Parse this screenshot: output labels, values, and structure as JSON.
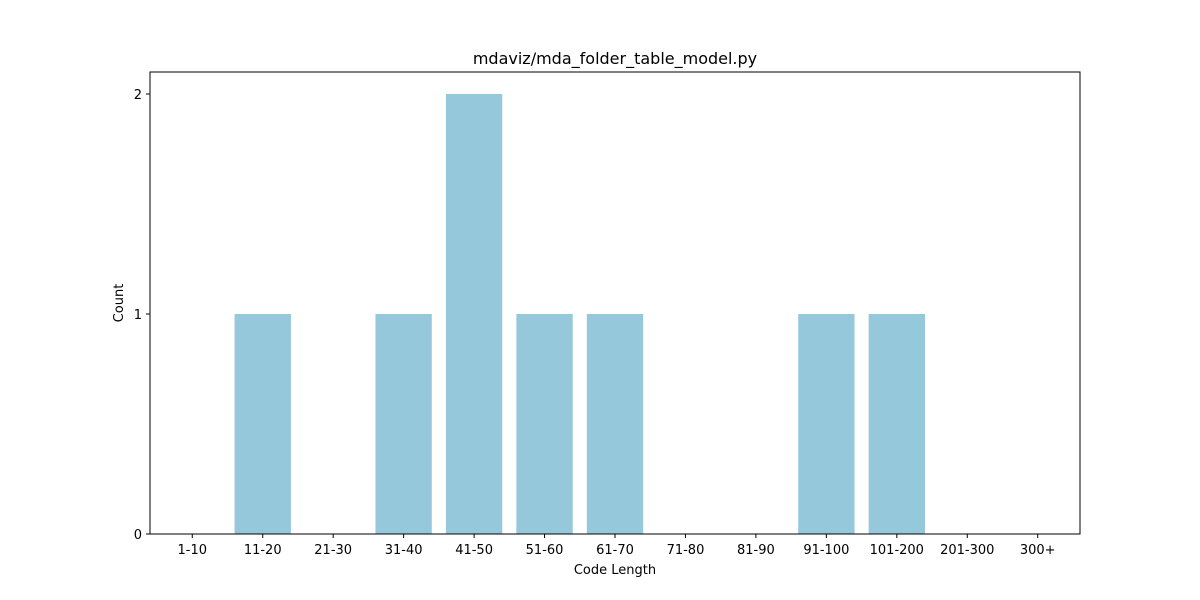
{
  "chart_data": {
    "type": "bar",
    "title": "mdaviz/mda_folder_table_model.py",
    "xlabel": "Code Length",
    "ylabel": "Count",
    "categories": [
      "1-10",
      "11-20",
      "21-30",
      "31-40",
      "41-50",
      "51-60",
      "61-70",
      "71-80",
      "81-90",
      "91-100",
      "101-200",
      "201-300",
      "300+"
    ],
    "values": [
      0,
      1,
      0,
      1,
      2,
      1,
      1,
      0,
      0,
      1,
      1,
      0,
      0
    ],
    "ylim": [
      0,
      2.1
    ],
    "yticks": [
      0,
      1,
      2
    ],
    "bar_color": "#96c8dc",
    "grid": false,
    "legend": "none"
  }
}
